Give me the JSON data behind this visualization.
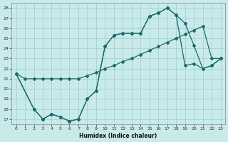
{
  "xlabel": "Humidex (Indice chaleur)",
  "xlim": [
    -0.5,
    23.5
  ],
  "ylim": [
    16.5,
    28.5
  ],
  "yticks": [
    17,
    18,
    19,
    20,
    21,
    22,
    23,
    24,
    25,
    26,
    27,
    28
  ],
  "xticks": [
    0,
    1,
    2,
    3,
    4,
    5,
    6,
    7,
    8,
    9,
    10,
    11,
    12,
    13,
    14,
    15,
    16,
    17,
    18,
    19,
    20,
    21,
    22,
    23
  ],
  "bg_color": "#c8eaea",
  "grid_color": "#a0cccc",
  "line_color": "#1a6b6b",
  "line1_x": [
    0,
    1,
    2,
    3,
    4,
    5,
    6,
    7,
    8,
    9,
    10,
    11,
    12,
    13,
    14,
    15,
    16,
    17,
    18,
    19,
    20,
    21,
    22,
    23
  ],
  "line1_y": [
    21.5,
    21.0,
    21.0,
    21.0,
    21.0,
    21.0,
    21.0,
    21.0,
    21.3,
    21.6,
    22.0,
    22.3,
    22.7,
    23.0,
    23.4,
    23.8,
    24.2,
    24.6,
    25.0,
    25.4,
    25.8,
    26.2,
    23.0,
    23.0
  ],
  "line2_x": [
    0,
    2,
    3,
    4,
    5,
    6,
    7,
    8,
    9,
    10,
    11,
    12,
    13,
    14,
    15,
    16,
    17,
    18,
    19,
    20,
    21,
    22,
    23
  ],
  "line2_y": [
    21.5,
    18.0,
    17.0,
    17.5,
    17.2,
    16.8,
    17.0,
    19.0,
    19.8,
    24.2,
    25.3,
    25.5,
    25.5,
    25.5,
    27.2,
    27.5,
    28.0,
    27.3,
    26.5,
    24.3,
    22.0,
    22.3,
    23.0
  ],
  "line3_x": [
    0,
    2,
    3,
    4,
    5,
    6,
    7,
    8,
    9,
    10,
    11,
    12,
    13,
    14,
    15,
    16,
    17,
    18,
    19,
    20,
    21,
    22,
    23
  ],
  "line3_y": [
    21.5,
    18.0,
    17.0,
    17.5,
    17.2,
    16.8,
    17.0,
    19.0,
    19.8,
    24.2,
    25.3,
    25.5,
    25.5,
    25.5,
    27.2,
    27.5,
    28.0,
    27.3,
    22.3,
    22.5,
    22.0,
    22.3,
    23.0
  ]
}
